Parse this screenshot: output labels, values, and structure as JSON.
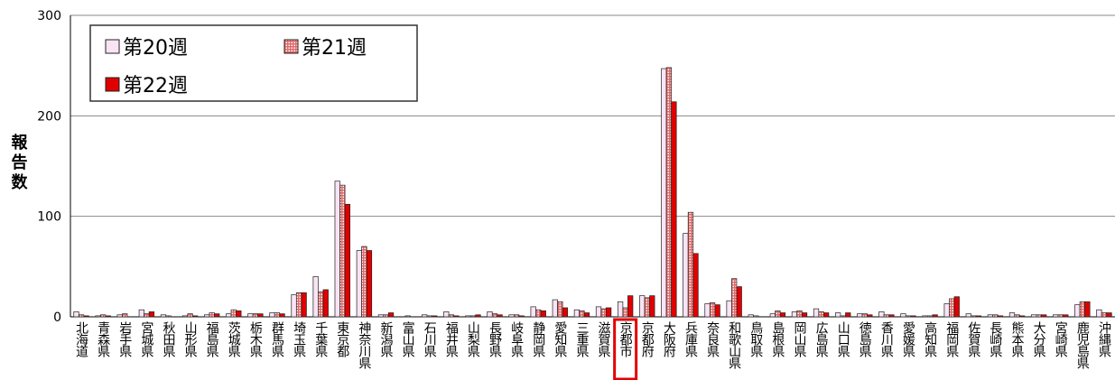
{
  "chart_data": {
    "type": "bar",
    "y_label": "報告数",
    "categories": [
      "北海道",
      "青森県",
      "岩手県",
      "宮城県",
      "秋田県",
      "山形県",
      "福島県",
      "茨城県",
      "栃木県",
      "群馬県",
      "埼玉県",
      "千葉県",
      "東京都",
      "神奈川県",
      "新潟県",
      "富山県",
      "石川県",
      "福井県",
      "山梨県",
      "長野県",
      "岐阜県",
      "静岡県",
      "愛知県",
      "三重県",
      "滋賀県",
      "京都市",
      "京都府",
      "大阪府",
      "兵庫県",
      "奈良県",
      "和歌山県",
      "鳥取県",
      "島根県",
      "岡山県",
      "広島県",
      "山口県",
      "徳島県",
      "香川県",
      "愛媛県",
      "高知県",
      "福岡県",
      "佐賀県",
      "長崎県",
      "熊本県",
      "大分県",
      "宮崎県",
      "鹿児島県",
      "沖縄県"
    ],
    "series": [
      {
        "name": "第20週",
        "color": "#f8e4f4",
        "values": [
          5,
          1,
          2,
          7,
          2,
          1,
          2,
          3,
          3,
          4,
          22,
          40,
          135,
          66,
          2,
          0,
          2,
          5,
          1,
          5,
          2,
          10,
          17,
          7,
          10,
          15,
          21,
          247,
          83,
          13,
          16,
          2,
          3,
          5,
          8,
          4,
          3,
          5,
          3,
          1,
          13,
          3,
          2,
          4,
          2,
          2,
          12,
          7
        ]
      },
      {
        "name": "第21週",
        "color": "#e06a6a",
        "pattern": "checker",
        "values": [
          2,
          2,
          3,
          3,
          1,
          3,
          4,
          7,
          3,
          4,
          24,
          25,
          131,
          70,
          2,
          1,
          1,
          2,
          1,
          3,
          2,
          7,
          15,
          6,
          8,
          9,
          19,
          248,
          104,
          14,
          38,
          1,
          6,
          6,
          5,
          1,
          3,
          2,
          1,
          1,
          18,
          1,
          2,
          2,
          2,
          2,
          15,
          4
        ]
      },
      {
        "name": "第22週",
        "color": "#e00000",
        "values": [
          1,
          1,
          0,
          5,
          0,
          1,
          3,
          6,
          3,
          3,
          24,
          27,
          112,
          66,
          4,
          0,
          1,
          1,
          2,
          2,
          1,
          6,
          9,
          4,
          9,
          21,
          21,
          214,
          63,
          12,
          30,
          0,
          4,
          4,
          4,
          4,
          2,
          2,
          1,
          2,
          20,
          1,
          1,
          1,
          2,
          2,
          15,
          4
        ]
      }
    ],
    "ylim": [
      0,
      300
    ],
    "yticks": [
      0,
      100,
      200,
      300
    ],
    "grid": true,
    "highlight_category": 25
  }
}
